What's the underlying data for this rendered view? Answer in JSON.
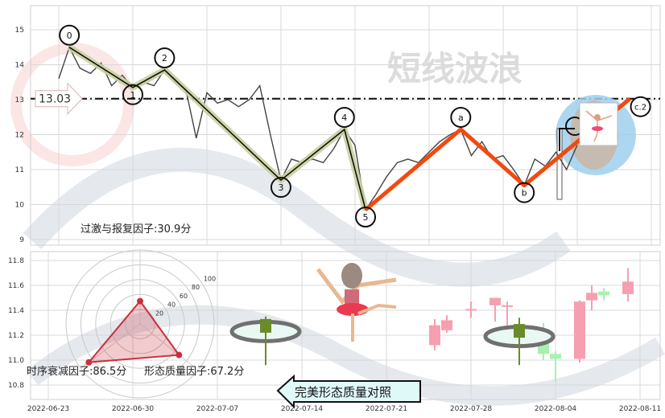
{
  "chart_data": [
    {
      "type": "line",
      "panel": "top",
      "watermark": "短线波浪",
      "ylim": [
        9,
        15.5
      ],
      "y_ticks": [
        "9",
        "10",
        "11",
        "12",
        "13",
        "14",
        "15"
      ],
      "grid": true,
      "reference_line": {
        "value": 13.03,
        "label": "13.03",
        "style": "dash-dot"
      },
      "price": [
        [
          "2022-06-16",
          13.6
        ],
        [
          "2022-06-17",
          14.5
        ],
        [
          "2022-06-18",
          13.9
        ],
        [
          "2022-06-19",
          13.75
        ],
        [
          "2022-06-20",
          14.05
        ],
        [
          "2022-06-21",
          13.4
        ],
        [
          "2022-06-22",
          13.7
        ],
        [
          "2022-06-23",
          13.35
        ],
        [
          "2022-06-24",
          13.5
        ],
        [
          "2022-06-25",
          13.4
        ],
        [
          "2022-06-26",
          13.85
        ],
        [
          "2022-06-27",
          13.5
        ],
        [
          "2022-06-28",
          13.3
        ],
        [
          "2022-06-29",
          11.9
        ],
        [
          "2022-06-30",
          13.2
        ],
        [
          "2022-07-01",
          12.9
        ],
        [
          "2022-07-02",
          13.0
        ],
        [
          "2022-07-03",
          12.8
        ],
        [
          "2022-07-04",
          13.0
        ],
        [
          "2022-07-05",
          13.4
        ],
        [
          "2022-07-06",
          12.0
        ],
        [
          "2022-07-07",
          10.7
        ],
        [
          "2022-07-08",
          11.3
        ],
        [
          "2022-07-09",
          11.2
        ],
        [
          "2022-07-10",
          11.3
        ],
        [
          "2022-07-11",
          11.2
        ],
        [
          "2022-07-12",
          11.6
        ],
        [
          "2022-07-13",
          12.15
        ],
        [
          "2022-07-14",
          11.7
        ],
        [
          "2022-07-15",
          9.85
        ],
        [
          "2022-07-16",
          10.3
        ],
        [
          "2022-07-17",
          10.8
        ],
        [
          "2022-07-18",
          11.2
        ],
        [
          "2022-07-19",
          11.3
        ],
        [
          "2022-07-20",
          11.2
        ],
        [
          "2022-07-21",
          11.5
        ],
        [
          "2022-07-22",
          11.8
        ],
        [
          "2022-07-23",
          12.0
        ],
        [
          "2022-07-24",
          12.15
        ],
        [
          "2022-07-25",
          11.4
        ],
        [
          "2022-07-26",
          11.8
        ],
        [
          "2022-07-27",
          11.3
        ],
        [
          "2022-07-28",
          11.4
        ],
        [
          "2022-07-29",
          11.0
        ],
        [
          "2022-07-30",
          10.55
        ],
        [
          "2022-07-31",
          11.3
        ],
        [
          "2022-08-01",
          11.1
        ],
        [
          "2022-08-02",
          11.5
        ],
        [
          "2022-08-03",
          11.0
        ],
        [
          "2022-08-04",
          11.7
        ]
      ],
      "waves": [
        {
          "label": "0",
          "date": "2022-06-17",
          "value": 14.5,
          "kind": "peak",
          "group": "impulse"
        },
        {
          "label": "1",
          "date": "2022-06-23",
          "value": 13.35,
          "kind": "trough",
          "group": "impulse"
        },
        {
          "label": "2",
          "date": "2022-06-26",
          "value": 13.85,
          "kind": "peak",
          "group": "impulse"
        },
        {
          "label": "3",
          "date": "2022-07-07",
          "value": 10.7,
          "kind": "trough",
          "group": "impulse"
        },
        {
          "label": "4",
          "date": "2022-07-13",
          "value": 12.15,
          "kind": "peak",
          "group": "impulse"
        },
        {
          "label": "5",
          "date": "2022-07-15",
          "value": 9.85,
          "kind": "trough",
          "group": "both"
        },
        {
          "label": "a",
          "date": "2022-07-24",
          "value": 12.15,
          "kind": "peak",
          "group": "correction"
        },
        {
          "label": "b",
          "date": "2022-07-30",
          "value": 10.55,
          "kind": "trough",
          "group": "correction"
        },
        {
          "label": "c.2",
          "date": "2022-08-09",
          "value": 13.03,
          "kind": "end",
          "group": "correction"
        }
      ],
      "colors": {
        "price": "#444444",
        "impulse": "#111111",
        "impulse_halo": "#c8d0a0",
        "correction": "#f04a10",
        "highlight": "#9fd0ee"
      }
    },
    {
      "type": "candlestick",
      "panel": "bottom",
      "ylim": [
        10.7,
        11.85
      ],
      "y_ticks": [
        "10.8",
        "11.0",
        "11.2",
        "11.4",
        "11.6",
        "11.8"
      ],
      "x_ticks": [
        "2022-06-23",
        "2022-06-30",
        "2022-07-07",
        "2022-07-14",
        "2022-07-21",
        "2022-07-28",
        "2022-08-04",
        "2022-08-11"
      ],
      "grid": true,
      "highlight_candles": [
        {
          "date": "2022-07-11",
          "open": 11.22,
          "close": 11.33,
          "high": 11.35,
          "low": 10.96
        },
        {
          "date": "2022-08-01",
          "open": 11.18,
          "close": 11.29,
          "high": 11.34,
          "low": 10.96
        }
      ],
      "candles": [
        {
          "date": "2022-07-25",
          "open": 11.12,
          "close": 11.28,
          "high": 11.33,
          "low": 11.08
        },
        {
          "date": "2022-07-26",
          "open": 11.24,
          "close": 11.32,
          "high": 11.36,
          "low": 11.22
        },
        {
          "date": "2022-07-28",
          "open": 11.4,
          "close": 11.41,
          "high": 11.47,
          "low": 11.34
        },
        {
          "date": "2022-07-30",
          "open": 11.44,
          "close": 11.5,
          "high": 11.5,
          "low": 11.31
        },
        {
          "date": "2022-07-31",
          "open": 11.43,
          "close": 11.44,
          "high": 11.47,
          "low": 11.28
        },
        {
          "date": "2022-08-03",
          "open": 11.17,
          "close": 11.05,
          "high": 11.3,
          "low": 11.0
        },
        {
          "date": "2022-08-04",
          "open": 11.05,
          "close": 11.01,
          "high": 11.07,
          "low": 10.83
        },
        {
          "date": "2022-08-06",
          "open": 11.01,
          "close": 11.47,
          "high": 11.48,
          "low": 10.98
        },
        {
          "date": "2022-08-07",
          "open": 11.48,
          "close": 11.54,
          "high": 11.6,
          "low": 11.4
        },
        {
          "date": "2022-08-08",
          "open": 11.55,
          "close": 11.52,
          "high": 11.58,
          "low": 11.48
        },
        {
          "date": "2022-08-10",
          "open": 11.53,
          "close": 11.63,
          "high": 11.74,
          "low": 11.47
        }
      ],
      "colors": {
        "up": "#f4a0b0",
        "down": "#a8f0b0",
        "highlight": "#6b8a2a"
      },
      "callout": "完美形态质量对照"
    },
    {
      "type": "radar",
      "r_ticks": [
        "20",
        "40",
        "60",
        "80",
        "100"
      ],
      "rlim": [
        0,
        100
      ],
      "axes": [
        {
          "label": "过激与报复因子:30.9分",
          "value": 30.9
        },
        {
          "label": "时序衰减因子:86.5分",
          "value": 86.5
        },
        {
          "label": "形态质量因子:67.2分",
          "value": 67.2
        }
      ],
      "color": "#c8303c"
    }
  ]
}
